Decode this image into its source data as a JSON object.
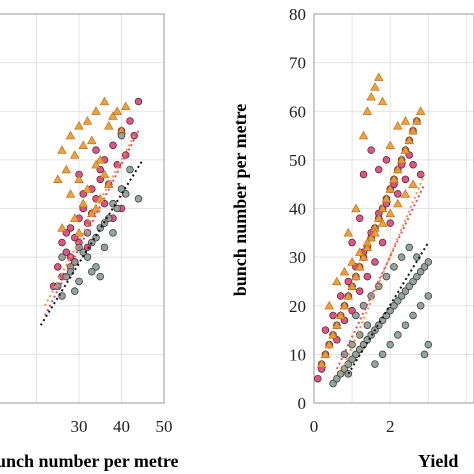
{
  "chart_data": [
    {
      "type": "scatter",
      "panel": "left",
      "xlabel": "bunch number per metre",
      "ylabel": "",
      "xlim": [
        10,
        50
      ],
      "x_ticks": [
        "30",
        "40",
        "50"
      ],
      "grid": true,
      "series": [
        {
          "color": "#e8467c",
          "marker": "circle",
          "x": [
            26,
            28,
            30,
            31,
            33,
            35,
            36,
            38,
            40,
            42,
            44,
            27,
            29,
            32,
            34,
            37,
            39,
            41,
            43,
            25,
            28,
            30,
            33,
            36,
            31,
            35,
            38,
            40,
            27,
            29,
            32,
            26,
            24,
            30,
            34
          ],
          "y": [
            33,
            36,
            38,
            40,
            44,
            48,
            50,
            53,
            56,
            58,
            62,
            31,
            34,
            37,
            42,
            45,
            49,
            51,
            55,
            28,
            30,
            33,
            39,
            41,
            43,
            46,
            38,
            40,
            35,
            29,
            32,
            26,
            24,
            47,
            52
          ],
          "trend_x": [
            22,
            44
          ],
          "trend_y": [
            18,
            56
          ]
        },
        {
          "color": "#f39a2d",
          "marker": "triangle",
          "x": [
            26,
            28,
            30,
            32,
            34,
            36,
            38,
            40,
            27,
            29,
            31,
            33,
            35,
            37,
            39,
            41,
            25,
            30,
            32,
            34,
            36,
            28,
            31,
            33,
            35,
            29,
            37,
            26,
            30,
            34
          ],
          "y": [
            52,
            55,
            57,
            58,
            60,
            62,
            59,
            56,
            48,
            51,
            53,
            54,
            50,
            57,
            60,
            61,
            46,
            46,
            44,
            49,
            47,
            43,
            41,
            39,
            42,
            38,
            45,
            36,
            35,
            40
          ],
          "trend_x": [
            22,
            43
          ],
          "trend_y": [
            20,
            55
          ]
        },
        {
          "color": "#8f9e97",
          "marker": "circle",
          "x": [
            26,
            28,
            30,
            32,
            34,
            36,
            38,
            40,
            42,
            27,
            29,
            31,
            33,
            35,
            37,
            39,
            41,
            44,
            25,
            28,
            30,
            32,
            34,
            36,
            38,
            40,
            26,
            29,
            33,
            35
          ],
          "y": [
            30,
            28,
            32,
            35,
            34,
            37,
            41,
            44,
            48,
            26,
            29,
            31,
            33,
            36,
            38,
            40,
            43,
            42,
            24,
            27,
            25,
            30,
            28,
            32,
            35,
            55,
            22,
            23,
            27,
            26
          ],
          "trend_x": [
            21,
            45
          ],
          "trend_y": [
            16,
            50
          ]
        }
      ]
    },
    {
      "type": "scatter",
      "panel": "right",
      "xlabel": "Yield",
      "ylabel": "bunch number per metre",
      "xlim": [
        0,
        4.2
      ],
      "ylim": [
        0,
        80
      ],
      "x_ticks": [
        "0",
        "2"
      ],
      "y_ticks": [
        "0",
        "10",
        "20",
        "30",
        "40",
        "50",
        "60",
        "70",
        "80"
      ],
      "grid": true,
      "series": [
        {
          "color": "#e8467c",
          "marker": "circle",
          "x": [
            0.1,
            0.2,
            0.3,
            0.4,
            0.5,
            0.6,
            0.7,
            0.8,
            0.9,
            1.0,
            1.1,
            1.2,
            1.3,
            1.4,
            1.5,
            1.6,
            1.7,
            1.8,
            1.9,
            2.0,
            2.1,
            2.2,
            2.3,
            2.4,
            2.5,
            2.6,
            2.7,
            2.8,
            0.3,
            0.5,
            0.7,
            0.9,
            1.1,
            1.3,
            1.5,
            1.7,
            1.9,
            2.1,
            2.3,
            2.5,
            0.4,
            0.6,
            0.8,
            1.0,
            1.2,
            1.4,
            1.6,
            1.8,
            2.0,
            2.2,
            2.4,
            2.6,
            1.5,
            1.7,
            1.9,
            2.1,
            1.3,
            0.2,
            1.0,
            1.2
          ],
          "y": [
            5,
            8,
            10,
            12,
            14,
            16,
            18,
            20,
            22,
            24,
            26,
            28,
            30,
            32,
            34,
            36,
            38,
            40,
            42,
            44,
            46,
            48,
            50,
            52,
            54,
            56,
            58,
            47,
            15,
            18,
            22,
            25,
            28,
            31,
            35,
            39,
            41,
            45,
            49,
            51,
            12,
            13,
            17,
            19,
            23,
            26,
            29,
            33,
            37,
            43,
            46,
            49,
            52,
            48,
            50,
            45,
            47,
            7,
            33,
            38
          ],
          "trend_x": [
            0.6,
            2.9
          ],
          "trend_y": [
            7,
            45
          ]
        },
        {
          "color": "#f39a2d",
          "marker": "triangle",
          "x": [
            0.2,
            0.3,
            0.4,
            0.5,
            0.6,
            0.7,
            0.8,
            0.9,
            1.0,
            1.1,
            1.2,
            1.3,
            1.4,
            1.5,
            1.6,
            1.7,
            1.8,
            1.9,
            2.0,
            2.1,
            2.2,
            2.3,
            2.4,
            2.5,
            2.6,
            2.7,
            2.8,
            1.6,
            1.7,
            1.8,
            1.5,
            1.4,
            1.3,
            2.0,
            2.2,
            2.4,
            0.6,
            0.8,
            1.0,
            1.2,
            1.4,
            1.6,
            1.8,
            2.0,
            2.2,
            2.4,
            2.6,
            0.4,
            0.9,
            1.1
          ],
          "y": [
            8,
            10,
            12,
            14,
            16,
            18,
            20,
            22,
            24,
            26,
            28,
            30,
            32,
            34,
            36,
            38,
            40,
            42,
            44,
            46,
            48,
            50,
            52,
            54,
            56,
            58,
            60,
            65,
            67,
            62,
            63,
            60,
            55,
            53,
            57,
            58,
            25,
            27,
            29,
            31,
            33,
            35,
            37,
            39,
            41,
            43,
            45,
            20,
            35,
            40
          ],
          "trend_x": [
            0.7,
            2.9
          ],
          "trend_y": [
            6,
            47
          ]
        },
        {
          "color": "#8f9e97",
          "marker": "circle",
          "x": [
            0.5,
            0.6,
            0.7,
            0.8,
            0.9,
            1.0,
            1.1,
            1.2,
            1.3,
            1.4,
            1.5,
            1.6,
            1.7,
            1.8,
            1.9,
            2.0,
            2.1,
            2.2,
            2.3,
            2.4,
            2.5,
            2.6,
            2.7,
            2.8,
            2.9,
            3.0,
            0.8,
            1.0,
            1.2,
            1.4,
            1.6,
            1.8,
            2.0,
            2.2,
            2.4,
            2.6,
            2.8,
            3.0,
            1.1,
            1.3,
            1.5,
            1.7,
            1.9,
            2.1,
            2.3,
            2.5,
            2.7,
            2.9,
            0.9,
            3.0
          ],
          "y": [
            4,
            5,
            6,
            7,
            8,
            9,
            10,
            11,
            12,
            13,
            14,
            15,
            16,
            17,
            18,
            19,
            20,
            21,
            22,
            23,
            24,
            25,
            26,
            27,
            28,
            29,
            10,
            12,
            14,
            16,
            8,
            10,
            12,
            14,
            16,
            18,
            20,
            22,
            18,
            20,
            22,
            24,
            26,
            28,
            30,
            32,
            30,
            10,
            6,
            12
          ],
          "trend_x": [
            0.9,
            3.0
          ],
          "trend_y": [
            6,
            33
          ]
        }
      ]
    }
  ]
}
